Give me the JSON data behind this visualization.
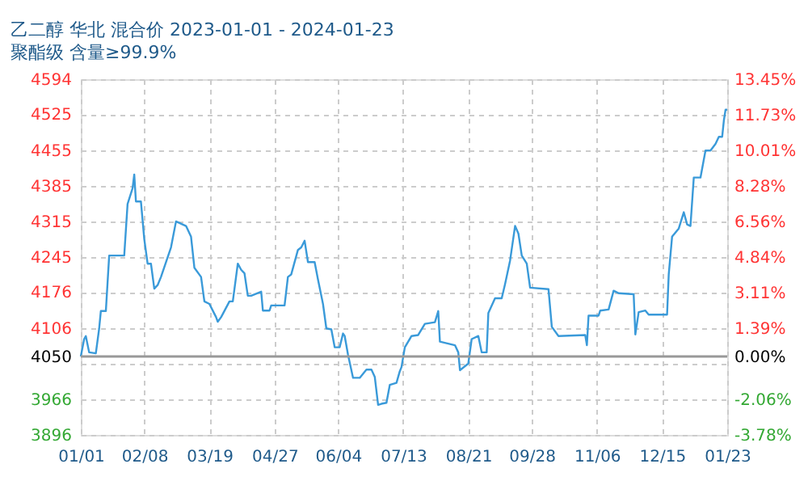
{
  "chart_data": {
    "type": "line",
    "title": "乙二醇 华北 混合价 2023-01-01 - 2024-01-23",
    "subtitle": "聚酯级 含量≥99.9%",
    "x": [
      "2023-01-01",
      "2023-01-03",
      "2023-01-04",
      "2023-01-06",
      "2023-01-10",
      "2023-01-12",
      "2023-01-13",
      "2023-01-16",
      "2023-01-18",
      "2023-01-27",
      "2023-01-29",
      "2023-02-01",
      "2023-02-02",
      "2023-02-03",
      "2023-02-06",
      "2023-02-08",
      "2023-02-10",
      "2023-02-12",
      "2023-02-14",
      "2023-02-16",
      "2023-02-18",
      "2023-02-24",
      "2023-02-27",
      "2023-03-05",
      "2023-03-08",
      "2023-03-10",
      "2023-03-14",
      "2023-03-16",
      "2023-03-19",
      "2023-03-23",
      "2023-03-24",
      "2023-03-26",
      "2023-03-31",
      "2023-04-02",
      "2023-04-05",
      "2023-04-07",
      "2023-04-09",
      "2023-04-11",
      "2023-04-13",
      "2023-04-19",
      "2023-04-20",
      "2023-04-24",
      "2023-04-25",
      "2023-05-03",
      "2023-05-05",
      "2023-05-07",
      "2023-05-11",
      "2023-05-13",
      "2023-05-15",
      "2023-05-17",
      "2023-05-21",
      "2023-05-23",
      "2023-05-26",
      "2023-05-28",
      "2023-05-31",
      "2023-06-02",
      "2023-06-05",
      "2023-06-07",
      "2023-06-08",
      "2023-06-10",
      "2023-06-13",
      "2023-06-17",
      "2023-06-21",
      "2023-06-24",
      "2023-06-26",
      "2023-06-28",
      "2023-06-30",
      "2023-07-03",
      "2023-07-05",
      "2023-07-09",
      "2023-07-11",
      "2023-07-12",
      "2023-07-14",
      "2023-07-18",
      "2023-07-22",
      "2023-07-26",
      "2023-08-01",
      "2023-08-03",
      "2023-08-04",
      "2023-08-13",
      "2023-08-15",
      "2023-08-16",
      "2023-08-21",
      "2023-08-23",
      "2023-08-27",
      "2023-08-29",
      "2023-09-01",
      "2023-09-02",
      "2023-09-06",
      "2023-09-10",
      "2023-09-12",
      "2023-09-15",
      "2023-09-18",
      "2023-09-20",
      "2023-09-22",
      "2023-09-25",
      "2023-09-27",
      "2023-10-08",
      "2023-10-10",
      "2023-10-14",
      "2023-10-30",
      "2023-10-31",
      "2023-11-01",
      "2023-11-07",
      "2023-11-08",
      "2023-11-13",
      "2023-11-16",
      "2023-11-19",
      "2023-11-28",
      "2023-11-29",
      "2023-12-01",
      "2023-12-05",
      "2023-12-07",
      "2023-12-18",
      "2023-12-19",
      "2023-12-21",
      "2023-12-25",
      "2023-12-28",
      "2023-12-30",
      "2024-01-01",
      "2024-01-03",
      "2024-01-07",
      "2024-01-10",
      "2024-01-13",
      "2024-01-16",
      "2024-01-18",
      "2024-01-20",
      "2024-01-21",
      "2024-01-22",
      "2024-01-23"
    ],
    "series": [
      {
        "color": "#3a9ad9",
        "values": [
          4050,
          4084,
          4090,
          4058,
          4056,
          4105,
          4139,
          4139,
          4248,
          4248,
          4349,
          4380,
          4407,
          4354,
          4354,
          4280,
          4232,
          4232,
          4183,
          4190,
          4206,
          4264,
          4315,
          4306,
          4285,
          4224,
          4206,
          4158,
          4153,
          4127,
          4118,
          4127,
          4158,
          4158,
          4232,
          4220,
          4213,
          4169,
          4169,
          4177,
          4140,
          4140,
          4150,
          4150,
          4206,
          4211,
          4259,
          4264,
          4277,
          4235,
          4235,
          4201,
          4153,
          4105,
          4103,
          4068,
          4068,
          4095,
          4090,
          4053,
          4008,
          4008,
          4024,
          4024,
          4010,
          3955,
          3957,
          3959,
          3994,
          3998,
          4021,
          4029,
          4068,
          4090,
          4092,
          4114,
          4117,
          4139,
          4079,
          4072,
          4058,
          4023,
          4036,
          4084,
          4090,
          4058,
          4058,
          4135,
          4164,
          4164,
          4192,
          4238,
          4306,
          4291,
          4248,
          4232,
          4185,
          4182,
          4108,
          4090,
          4092,
          4072,
          4130,
          4130,
          4140,
          4142,
          4179,
          4174,
          4172,
          4093,
          4137,
          4140,
          4132,
          4132,
          4211,
          4285,
          4301,
          4333,
          4309,
          4306,
          4401,
          4401,
          4454,
          4454,
          4467,
          4481,
          4481,
          4513,
          4534,
          4534
        ]
      }
    ],
    "xlim": [
      "2023-01-01",
      "2024-01-23"
    ],
    "xticks": [
      {
        "value": "2023-01-01",
        "label": "01/01"
      },
      {
        "value": "2023-02-08",
        "label": "02/08"
      },
      {
        "value": "2023-03-19",
        "label": "03/19"
      },
      {
        "value": "2023-04-27",
        "label": "04/27"
      },
      {
        "value": "2023-06-04",
        "label": "06/04"
      },
      {
        "value": "2023-07-13",
        "label": "07/13"
      },
      {
        "value": "2023-08-21",
        "label": "08/21"
      },
      {
        "value": "2023-09-28",
        "label": "09/28"
      },
      {
        "value": "2023-11-06",
        "label": "11/06"
      },
      {
        "value": "2023-12-15",
        "label": "12/15"
      },
      {
        "value": "2024-01-23",
        "label": "01/23"
      }
    ],
    "ylim": [
      3896,
      4594
    ],
    "yticks": [
      4594,
      4525,
      4455,
      4385,
      4315,
      4245,
      4176,
      4106,
      4050,
      {
        "value": 4036,
        "label": null
      },
      3966,
      3896
    ],
    "y2lim": [
      -3.78,
      13.45
    ],
    "y2ticks": [
      {
        "value": 13.45,
        "label": "13.45%"
      },
      {
        "value": 11.73,
        "label": "11.73%"
      },
      {
        "value": 10.01,
        "label": "10.01%"
      },
      {
        "value": 8.28,
        "label": "8.28%"
      },
      {
        "value": 6.56,
        "label": "6.56%"
      },
      {
        "value": 4.84,
        "label": "4.84%"
      },
      {
        "value": 3.11,
        "label": "3.11%"
      },
      {
        "value": 1.39,
        "label": "1.39%"
      },
      {
        "value": 0,
        "label": "0.00%"
      },
      {
        "value": -2.06,
        "label": "-2.06%"
      },
      {
        "value": -3.78,
        "label": "-3.78%"
      }
    ],
    "ref_lines": [
      {
        "axis": "y",
        "value": 4050,
        "color": "#999999",
        "line_style": "solid"
      }
    ],
    "grid": true,
    "marker": "none",
    "line_style": "solid"
  }
}
